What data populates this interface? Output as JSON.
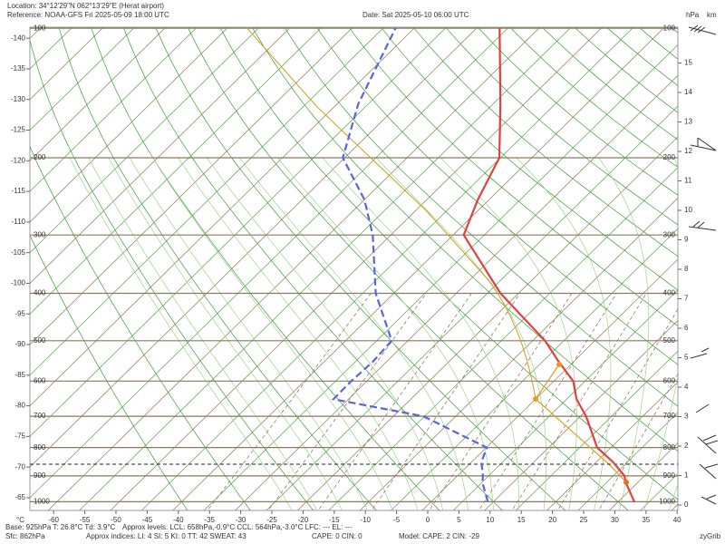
{
  "header": {
    "location": "Location:  34°12'29\"N  062°13'29\"E (Herat airport)",
    "reference": "Reference: NOAA-GFS Fri 2025-05-09 18:00 UTC",
    "date": "Date: Sat 2025-05-10 06:00 UTC",
    "pressure_unit": "hPa",
    "height_unit": "km"
  },
  "chart_data": {
    "type": "skewt",
    "x_unit": "°C",
    "xticks": [
      -60,
      -55,
      -50,
      -45,
      -40,
      -35,
      -30,
      -25,
      -20,
      -15,
      -10,
      -5,
      0,
      5,
      10,
      15,
      20,
      25,
      30,
      35,
      40
    ],
    "left_ticks": [
      -140,
      -135,
      -130,
      -125,
      -120,
      -115,
      -110,
      -105,
      -100,
      -95,
      -90,
      -85,
      -80,
      -75,
      -70,
      -65
    ],
    "pressure_ticks": [
      100,
      200,
      300,
      400,
      500,
      600,
      700,
      800,
      900,
      1000
    ],
    "height_ticks": [
      0,
      1,
      2,
      3,
      4,
      5,
      6,
      7,
      8,
      9,
      10,
      11,
      12,
      13,
      14,
      15
    ],
    "levels": [
      1000,
      925,
      900,
      850,
      800,
      700,
      650,
      600,
      550,
      500,
      400,
      300,
      250,
      200,
      150,
      100
    ],
    "series": [
      {
        "color": "#e04040",
        "dash": false,
        "values": [
          32.6,
          28.1,
          26.8,
          22.7,
          17.8,
          10.9,
          6.6,
          3.1,
          -2.4,
          -8.0,
          -22.9,
          -38.3,
          -41.8,
          -45.2,
          -53.8,
          -66.3
        ]
      },
      {
        "color": "#5a64e0",
        "dash": true,
        "values": [
          9.1,
          5.1,
          4.1,
          1.6,
          0.1,
          -15.2,
          -32.4,
          -32.5,
          -32.2,
          -32.6,
          -42.9,
          -52.9,
          -60.0,
          -70.3,
          -76.6,
          -83.0
        ]
      }
    ]
  },
  "footer": {
    "base": "Base: 925hPa  T: 26.8°C  Td: 3.9°C",
    "levels": "Approx levels:  LCL: 658hPa,-0.9°C    CCL: 564hPa,-3.0°C    LFC: ---    EL: ---",
    "sfc": "Sfc: 862hPa",
    "indices": "Approx indices:  LI: 4   SI: 5   KI: 0   TT: 42   SWEAT: 43",
    "cape": "CAPE: 0  CIN: 0",
    "model": "Model: CAPE: 2 CIN: -29",
    "brand": "zyGrib"
  }
}
